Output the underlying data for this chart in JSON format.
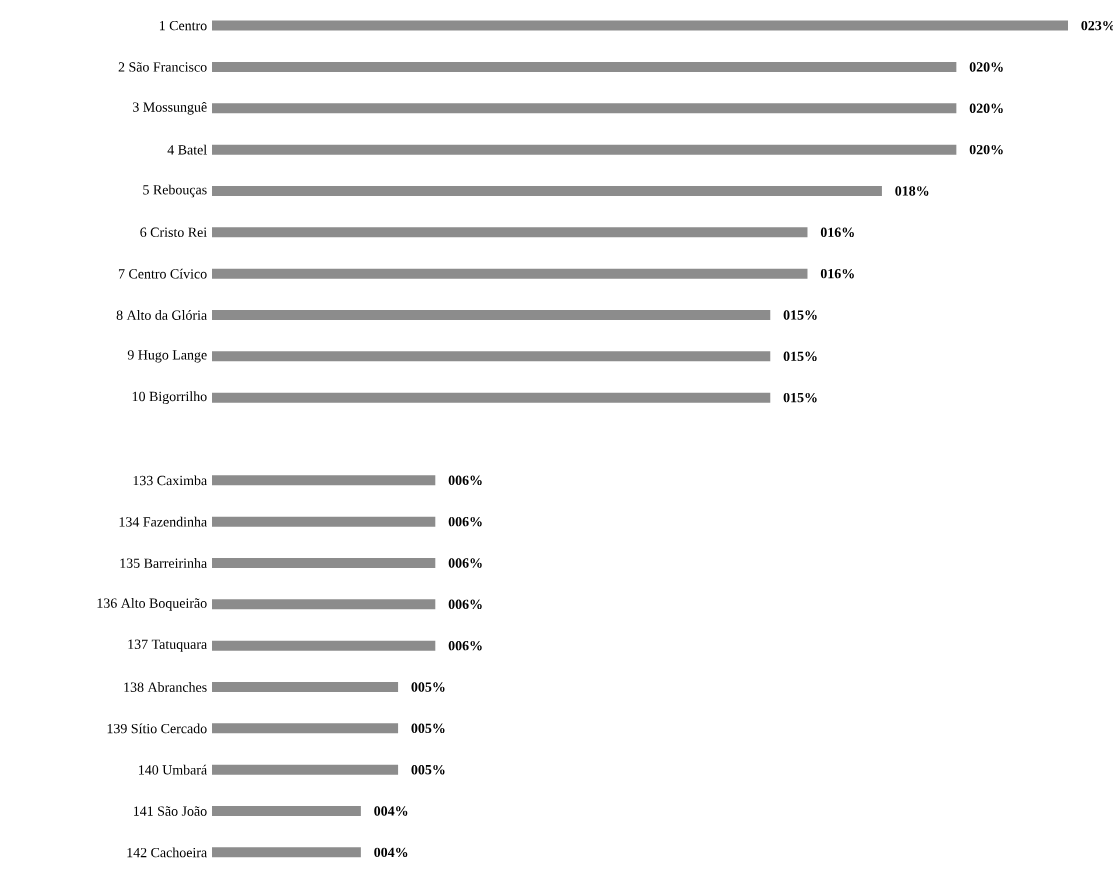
{
  "chart_data": {
    "type": "bar",
    "orientation": "horizontal",
    "color": "#8c8c8c",
    "categories": [
      "1 Centro",
      "2 São Francisco",
      "3 Mossunguê",
      "4 Batel",
      "5 Rebouças",
      "6 Cristo Rei",
      "7 Centro Cívico",
      "8 Alto da Glória",
      "9 Hugo Lange",
      "10 Bigorrilho",
      null,
      "133 Caximba",
      "134 Fazendinha",
      "135 Barreirinha",
      "136 Alto Boqueirão",
      "137 Tatuquara",
      "138 Abranches",
      "139 Sítio Cercado",
      "140 Umbará",
      "141 São João",
      "142 Cachoeira"
    ],
    "values": [
      23,
      20,
      20,
      20,
      18,
      16,
      16,
      15,
      15,
      15,
      null,
      6,
      6,
      6,
      6,
      6,
      5,
      5,
      5,
      4,
      4
    ],
    "value_labels": [
      "023%",
      "020%",
      "020%",
      "020%",
      "018%",
      "016%",
      "016%",
      "015%",
      "015%",
      "015%",
      null,
      "006%",
      "006%",
      "006%",
      "006%",
      "006%",
      "005%",
      "005%",
      "005%",
      "004%",
      "004%"
    ]
  }
}
